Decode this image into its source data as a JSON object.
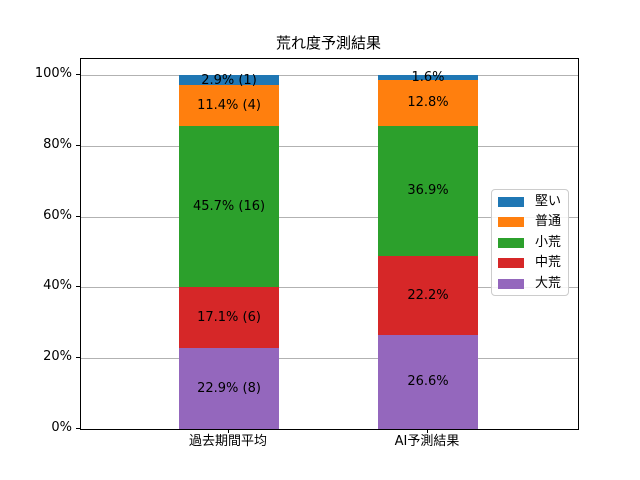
{
  "chart_data": {
    "type": "bar",
    "stacked": true,
    "title": "荒れ度予測結果",
    "categories": [
      "過去期間平均",
      "AI予測結果"
    ],
    "series": [
      {
        "name": "堅い",
        "color": "#1f77b4",
        "values": [
          2.9,
          1.6
        ]
      },
      {
        "name": "普通",
        "color": "#ff7f0e",
        "values": [
          11.4,
          12.8
        ]
      },
      {
        "name": "小荒",
        "color": "#2ca02c",
        "values": [
          45.7,
          36.9
        ]
      },
      {
        "name": "中荒",
        "color": "#d62728",
        "values": [
          17.1,
          22.2
        ]
      },
      {
        "name": "大荒",
        "color": "#9467bd",
        "values": [
          22.9,
          26.6
        ]
      }
    ],
    "bar_labels": [
      [
        "2.9% (1)",
        "11.4% (4)",
        "45.7% (16)",
        "17.1% (6)",
        "22.9% (8)"
      ],
      [
        "1.6%",
        "12.8%",
        "36.9%",
        "22.2%",
        "26.6%"
      ]
    ],
    "yticks": [
      0,
      20,
      40,
      60,
      80,
      100
    ],
    "ytick_labels": [
      "0%",
      "20%",
      "40%",
      "60%",
      "80%",
      "100%"
    ],
    "ylim": [
      0,
      100
    ],
    "grid": true,
    "legend": {
      "position": "center-right",
      "entries": [
        "堅い",
        "普通",
        "小荒",
        "中荒",
        "大荒"
      ]
    }
  }
}
